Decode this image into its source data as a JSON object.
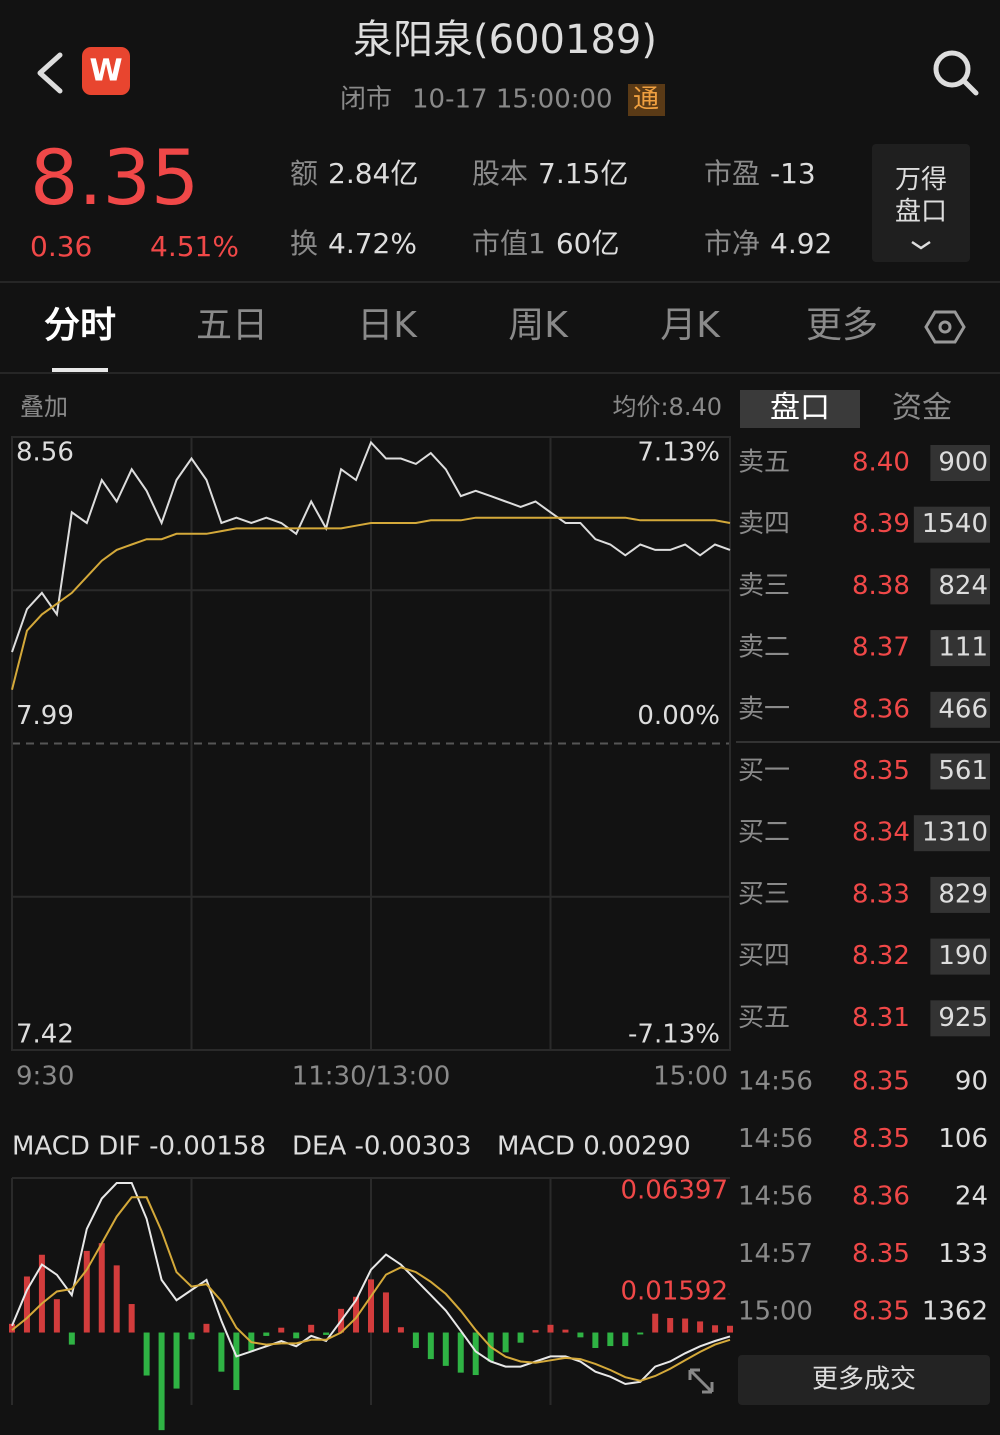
{
  "header": {
    "title": "泉阳泉(600189)",
    "status": "闭市",
    "time": "10-17 15:00:00",
    "badge": "通",
    "logo": "W"
  },
  "quote": {
    "price": "8.35",
    "change": "0.36",
    "change_pct": "4.51%",
    "stats": [
      {
        "label": "额",
        "value": "2.84亿"
      },
      {
        "label": "股本",
        "value": "7.15亿"
      },
      {
        "label": "市盈",
        "value": "-13"
      },
      {
        "label": "换",
        "value": "4.72%"
      },
      {
        "label": "市值1",
        "value": "60亿"
      },
      {
        "label": "市净",
        "value": "4.92"
      }
    ],
    "button": "万得盘口"
  },
  "tabs": [
    "分时",
    "五日",
    "日K",
    "周K",
    "月K",
    "更多"
  ],
  "overlay": "叠加",
  "avg_price": "均价:8.40",
  "panel_tabs": [
    "盘口",
    "资金"
  ],
  "order_book": [
    {
      "label": "卖五",
      "price": "8.40",
      "volume": "900"
    },
    {
      "label": "卖四",
      "price": "8.39",
      "volume": "1540"
    },
    {
      "label": "卖三",
      "price": "8.38",
      "volume": "824"
    },
    {
      "label": "卖二",
      "price": "8.37",
      "volume": "111"
    },
    {
      "label": "卖一",
      "price": "8.36",
      "volume": "466"
    },
    {
      "label": "买一",
      "price": "8.35",
      "volume": "561"
    },
    {
      "label": "买二",
      "price": "8.34",
      "volume": "1310"
    },
    {
      "label": "买三",
      "price": "8.33",
      "volume": "829"
    },
    {
      "label": "买四",
      "price": "8.32",
      "volume": "190"
    },
    {
      "label": "买五",
      "price": "8.31",
      "volume": "925"
    }
  ],
  "trades": [
    {
      "time": "14:56",
      "price": "8.35",
      "volume": "90",
      "color": "#f04848"
    },
    {
      "time": "14:56",
      "price": "8.35",
      "volume": "106",
      "color": "#f04848"
    },
    {
      "time": "14:56",
      "price": "8.36",
      "volume": "24",
      "color": "#f04848"
    },
    {
      "time": "14:57",
      "price": "8.35",
      "volume": "133",
      "color": "#2fb344"
    },
    {
      "time": "15:00",
      "price": "8.35",
      "volume": "1362",
      "color": "#2fb344"
    }
  ],
  "more_trades": "更多成交",
  "chart_data": [
    {
      "type": "line",
      "x": [
        0,
        5,
        10,
        15,
        20,
        25,
        30,
        35,
        40,
        45,
        50,
        55,
        60,
        65,
        70,
        75,
        80,
        85,
        90,
        95,
        100,
        105,
        110,
        115,
        120,
        125,
        130,
        135,
        140,
        145,
        150,
        155,
        160,
        165,
        170,
        175,
        180,
        185,
        190,
        195,
        200,
        205,
        210,
        215,
        220,
        225,
        230,
        235,
        240
      ],
      "xlim": [
        0,
        240
      ],
      "xticks": [
        {
          "value": 0,
          "label": "9:30"
        },
        {
          "value": 120,
          "label": "11:30/13:00"
        },
        {
          "value": 240,
          "label": "15:00"
        }
      ],
      "ylim": [
        7.42,
        8.56
      ],
      "yticks": [
        7.42,
        7.99,
        8.56
      ],
      "y2lim": [
        -7.13,
        7.13
      ],
      "y2ticks": [
        {
          "value": -7.13,
          "label": "-7.13%"
        },
        {
          "value": 0,
          "label": "0.00%"
        },
        {
          "value": 7.13,
          "label": "7.13%"
        }
      ],
      "series": [
        {
          "color": "#dddddd",
          "values": [
            8.16,
            8.24,
            8.27,
            8.23,
            8.42,
            8.4,
            8.48,
            8.44,
            8.5,
            8.46,
            8.4,
            8.48,
            8.52,
            8.48,
            8.4,
            8.41,
            8.4,
            8.41,
            8.4,
            8.38,
            8.44,
            8.39,
            8.5,
            8.48,
            8.55,
            8.52,
            8.52,
            8.51,
            8.53,
            8.5,
            8.45,
            8.46,
            8.45,
            8.44,
            8.43,
            8.44,
            8.42,
            8.4,
            8.4,
            8.37,
            8.36,
            8.34,
            8.36,
            8.35,
            8.35,
            8.36,
            8.34,
            8.36,
            8.35
          ]
        },
        {
          "color": "#d4a93a",
          "values": [
            8.09,
            8.2,
            8.23,
            8.25,
            8.27,
            8.3,
            8.33,
            8.35,
            8.36,
            8.37,
            8.37,
            8.38,
            8.38,
            8.38,
            8.385,
            8.39,
            8.39,
            8.39,
            8.39,
            8.39,
            8.39,
            8.39,
            8.39,
            8.395,
            8.4,
            8.4,
            8.4,
            8.4,
            8.405,
            8.405,
            8.405,
            8.41,
            8.41,
            8.41,
            8.41,
            8.41,
            8.41,
            8.41,
            8.41,
            8.41,
            8.41,
            8.41,
            8.405,
            8.405,
            8.405,
            8.405,
            8.405,
            8.405,
            8.4
          ]
        }
      ]
    },
    {
      "type": "macd",
      "legend": [
        "MACD DIF -0.00158",
        "DEA -0.00303",
        "MACD 0.00290"
      ],
      "x": [
        0,
        5,
        10,
        15,
        20,
        25,
        30,
        35,
        40,
        45,
        50,
        55,
        60,
        65,
        70,
        75,
        80,
        85,
        90,
        95,
        100,
        105,
        110,
        115,
        120,
        125,
        130,
        135,
        140,
        145,
        150,
        155,
        160,
        165,
        170,
        175,
        180,
        185,
        190,
        195,
        200,
        205,
        210,
        215,
        220,
        225,
        230,
        235,
        240
      ],
      "xlim": [
        0,
        240
      ],
      "ylim": [
        -0.03,
        0.06397
      ],
      "yticks": [
        0.01592,
        0.06397
      ],
      "series": [
        {
          "color": "#e8e8e8",
          "values": [
            0.0028,
            0.0176,
            0.0281,
            0.0239,
            0.0155,
            0.0429,
            0.0555,
            0.0619,
            0.0619,
            0.0471,
            0.0218,
            0.0134,
            0.0176,
            0.0218,
            0.0049,
            -0.0099,
            -0.0078,
            -0.0057,
            -0.0035,
            -0.0057,
            -0.0014,
            -0.0035,
            0.0049,
            0.0134,
            0.026,
            0.0323,
            0.0281,
            0.0218,
            0.0155,
            0.0091,
            0.0007,
            -0.0078,
            -0.012,
            -0.0141,
            -0.0141,
            -0.012,
            -0.0099,
            -0.0099,
            -0.012,
            -0.0162,
            -0.0183,
            -0.0213,
            -0.0204,
            -0.0141,
            -0.012,
            -0.0086,
            -0.0057,
            -0.0035,
            -0.0016
          ]
        },
        {
          "color": "#d4a93a",
          "values": [
            0.001,
            0.006,
            0.012,
            0.017,
            0.018,
            0.026,
            0.037,
            0.048,
            0.056,
            0.056,
            0.042,
            0.025,
            0.019,
            0.02,
            0.013,
            0.002,
            -0.004,
            -0.005,
            -0.0045,
            -0.0045,
            -0.003,
            -0.003,
            0.0,
            0.006,
            0.015,
            0.024,
            0.027,
            0.025,
            0.021,
            0.016,
            0.009,
            0.001,
            -0.006,
            -0.01,
            -0.012,
            -0.0125,
            -0.0115,
            -0.0105,
            -0.011,
            -0.013,
            -0.0155,
            -0.0185,
            -0.02,
            -0.018,
            -0.015,
            -0.0115,
            -0.008,
            -0.005,
            -0.003
          ]
        },
        {
          "color": "#b89be0",
          "values": [
            0.0036,
            0.0232,
            0.0322,
            0.0138,
            -0.005,
            0.0338,
            0.037,
            0.0278,
            0.0118,
            -0.0178,
            -0.0404,
            -0.0232,
            -0.0028,
            0.0036,
            -0.0162,
            -0.0238,
            -0.0076,
            -0.0014,
            0.002,
            -0.0024,
            0.0032,
            -0.001,
            0.0098,
            0.0148,
            0.022,
            0.0166,
            0.0022,
            -0.0064,
            -0.011,
            -0.0138,
            -0.0166,
            -0.0176,
            -0.012,
            -0.0082,
            -0.0042,
            0.001,
            0.0032,
            0.0012,
            -0.002,
            -0.0064,
            -0.0056,
            -0.0056,
            -0.0008,
            0.0078,
            0.006,
            0.0058,
            0.0046,
            0.003,
            0.0028
          ]
        }
      ]
    }
  ]
}
